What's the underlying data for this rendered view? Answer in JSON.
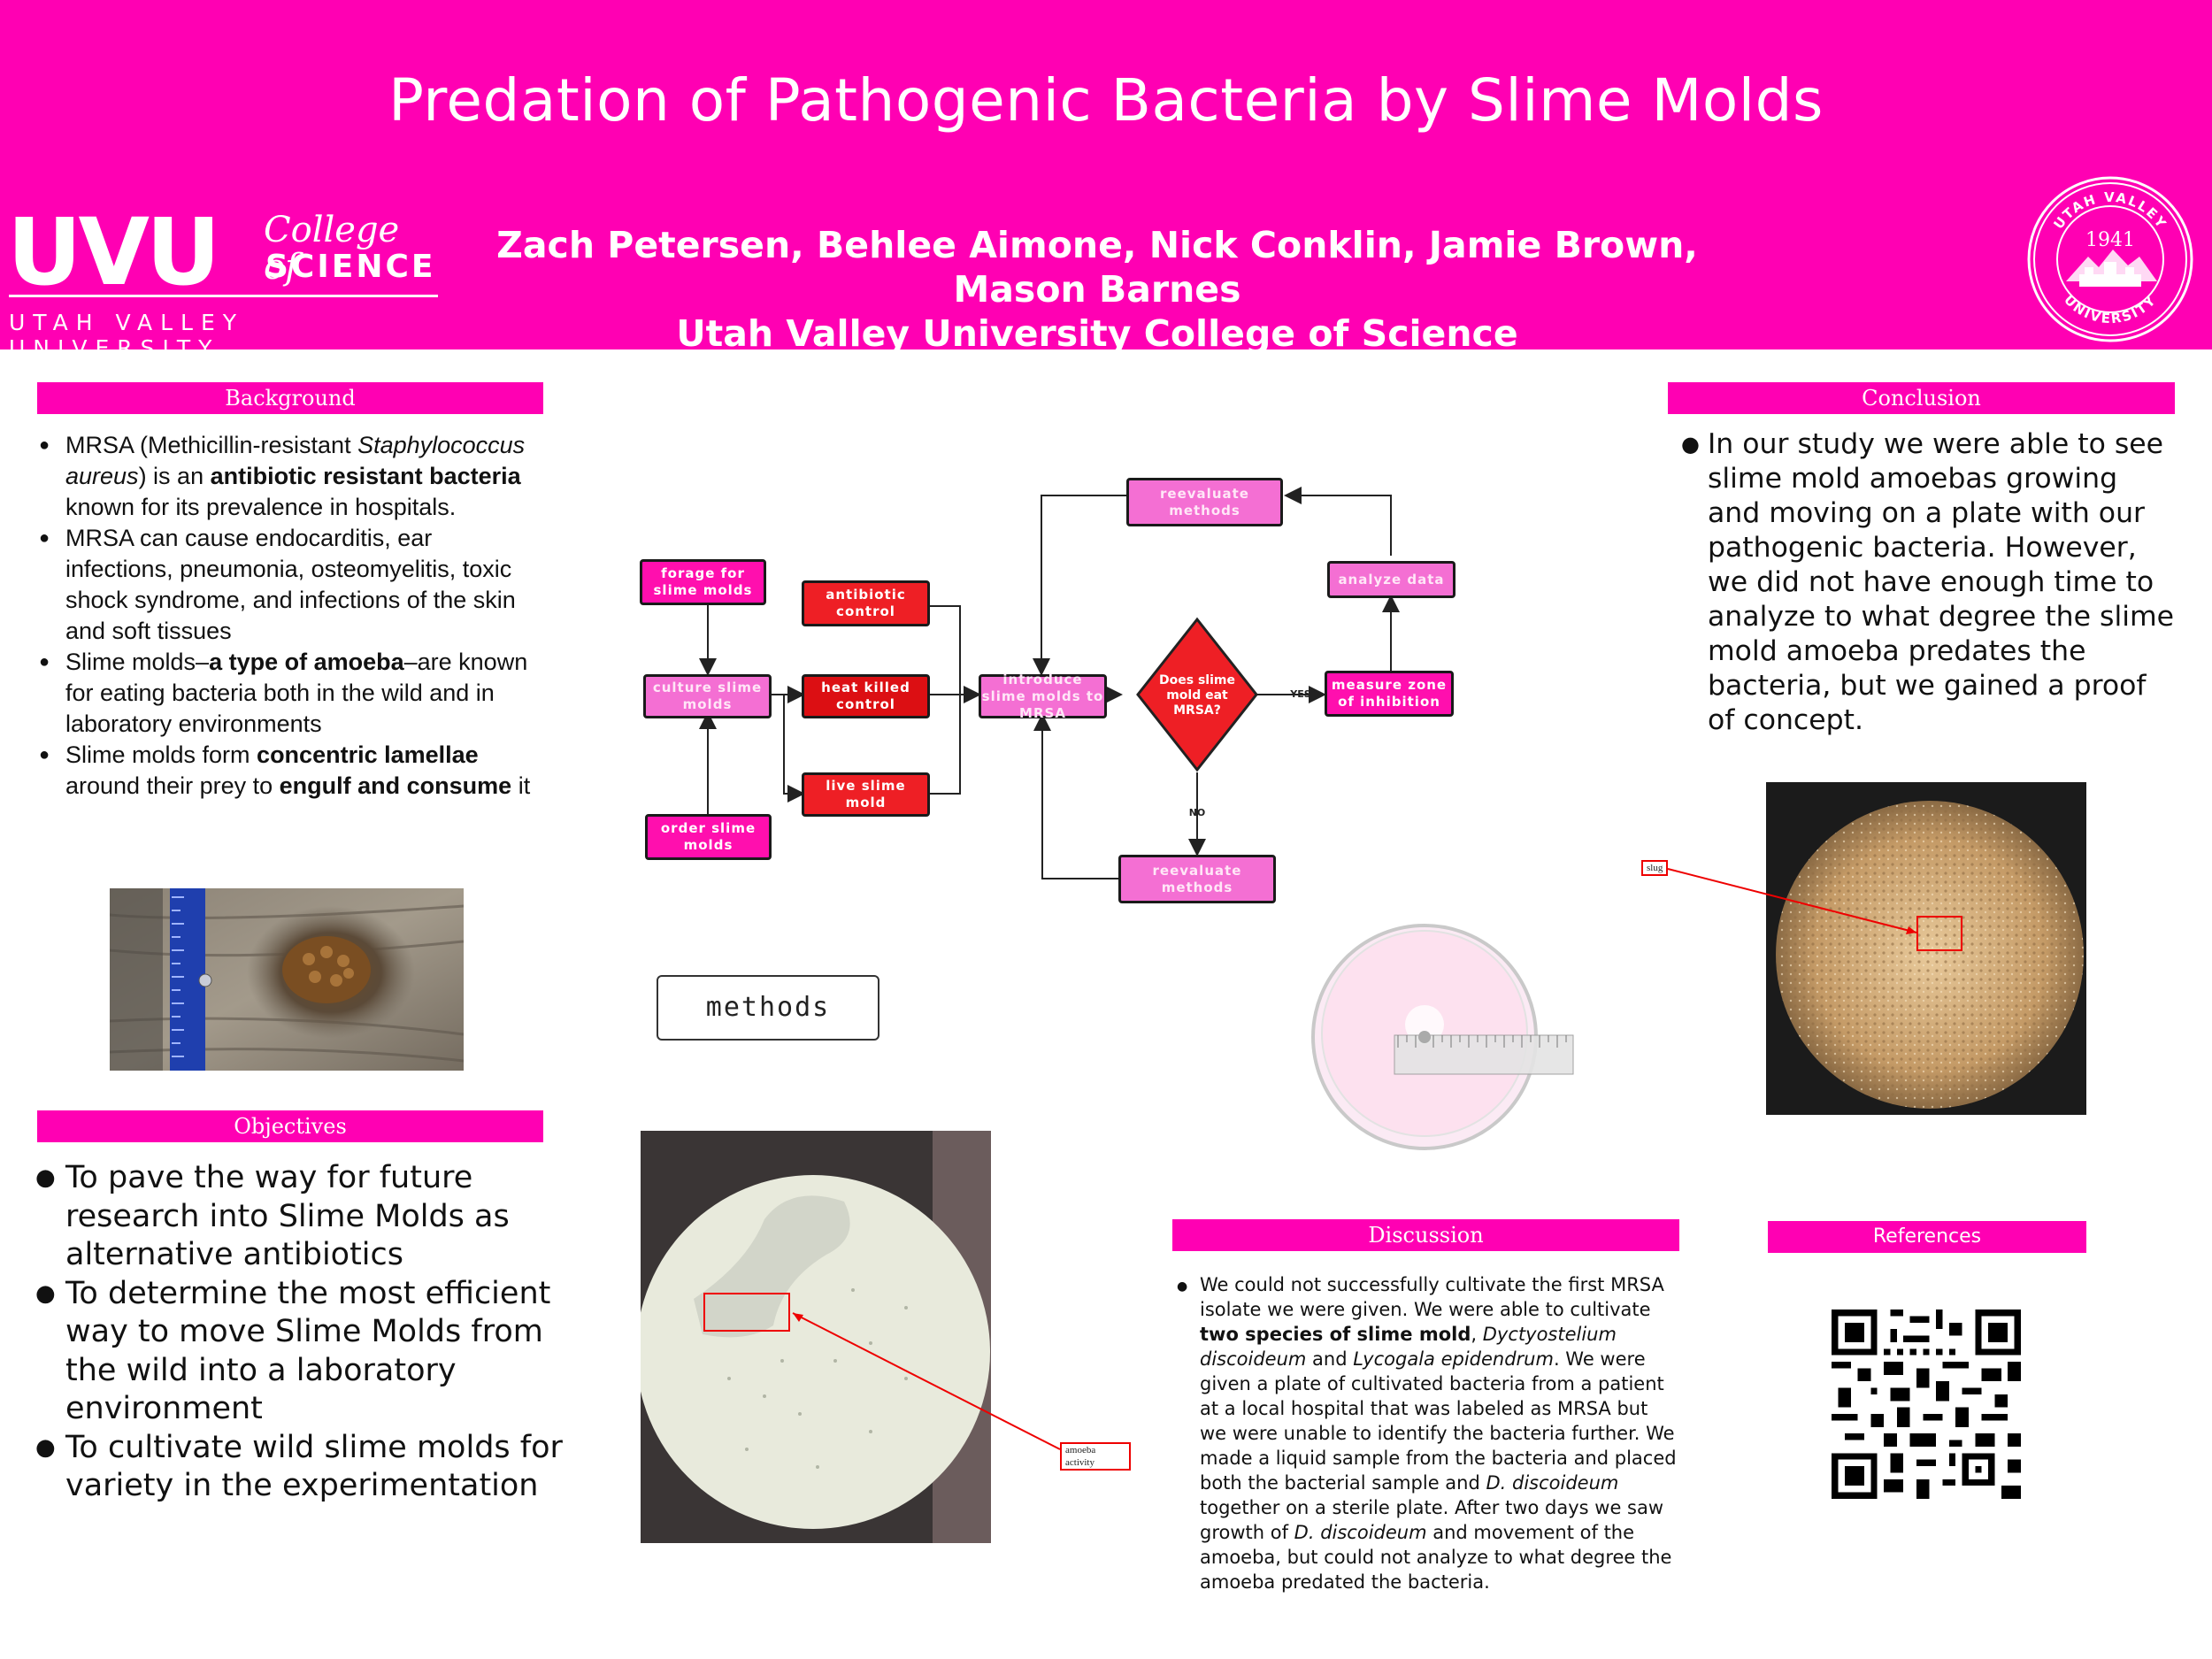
{
  "header": {
    "title": "Predation of Pathogenic Bacteria by Slime Molds",
    "authors": "Zach Petersen, Behlee Aimone, Nick Conklin, Jamie Brown, Mason Barnes",
    "institution": "Utah Valley University College of Science",
    "logo": {
      "mark": "UVU",
      "college_line1": "College of",
      "college_line2": "SCIENCE",
      "university": "UTAH VALLEY UNIVERSITY"
    },
    "seal": {
      "top_text": "UTAH VALLEY",
      "year": "1941",
      "bottom_text": "UNIVERSITY"
    },
    "accent_color": "#ff00b3"
  },
  "background": {
    "heading": "Background",
    "items": [
      {
        "a": "MRSA (Methicillin-resistant ",
        "i": "Staphylococcus aureus",
        "b": ") is an ",
        "bold": "antibiotic resistant bacteria",
        "c": " known for its prevalence in hospitals."
      },
      {
        "text": "MRSA can cause endocarditis, ear infections, pneumonia, osteomyelitis, toxic shock syndrome, and infections of the skin and soft tissues"
      },
      {
        "a": "Slime molds–",
        "bold": "a type of amoeba",
        "c": "–are known for eating bacteria both in the wild and in laboratory environments"
      },
      {
        "a": "Slime molds form ",
        "bold": "concentric lamellae",
        "b": " around their prey to ",
        "bold2": "engulf and consume",
        "c": " it"
      }
    ]
  },
  "objectives": {
    "heading": "Objectives",
    "items": [
      "To pave the way for future research into Slime Molds as alternative antibiotics",
      "To determine the most efficient way to move Slime Molds from the wild into a laboratory environment",
      "To cultivate wild slime molds for variety in the experimentation"
    ]
  },
  "flowchart": {
    "forage": "forage for slime molds",
    "culture": "culture slime molds",
    "order": "order slime molds",
    "antibiotic": "antibiotic control",
    "heat": "heat killed control",
    "live": "live slime mold",
    "introduce": "introduce slime molds to MRSA",
    "decision": "Does slime mold eat MRSA?",
    "yes": "YES",
    "no": "NO",
    "measure": "measure zone of inhibition",
    "analyze": "analyze data",
    "reeval_top": "reevaluate methods",
    "reeval_bottom": "reevaluate methods"
  },
  "methods_label": "methods",
  "photos": {
    "amoeba_callout": "amoeba activity",
    "slug_callout": "slug"
  },
  "conclusion": {
    "heading": "Conclusion",
    "text": "In our study we were able to see slime mold amoebas growing and moving on a plate with our pathogenic bacteria. However, we did not have enough time to analyze to what degree the slime mold amoeba predates the bacteria, but we gained a proof of concept."
  },
  "discussion": {
    "heading": "Discussion",
    "p1": "We could not successfully cultivate the first MRSA isolate we were given. We were able to cultivate ",
    "b1": "two species of slime mold",
    "p2": ", ",
    "i1": "Dyctyostelium discoideum",
    "p3": " and ",
    "i2": "Lycogala epidendrum",
    "p4": ". We were given a plate of cultivated bacteria from a patient at a local hospital that was labeled as MRSA but we were unable to identify the bacteria further. We made a liquid sample from the bacteria and placed both the bacterial sample and ",
    "i3": "D. discoideum",
    "p5": " together on a sterile plate. After two days we saw growth of ",
    "i4": "D. discoideum",
    "p6": " and movement of the amoeba, but could not analyze to what degree the amoeba predated the bacteria."
  },
  "references": {
    "heading": "References"
  }
}
